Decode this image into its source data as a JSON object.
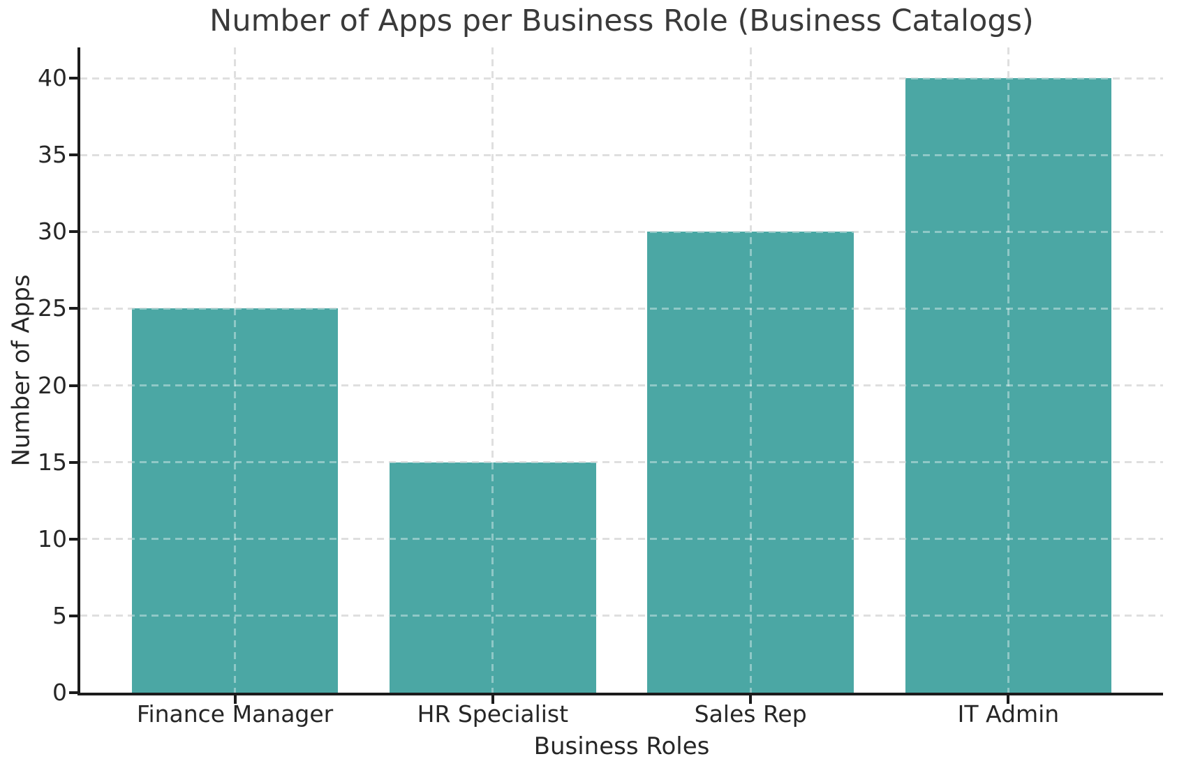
{
  "chart_data": {
    "type": "bar",
    "title": "Number of Apps per Business Role (Business Catalogs)",
    "xlabel": "Business Roles",
    "ylabel": "Number of Apps",
    "categories": [
      "Finance Manager",
      "HR Specialist",
      "Sales Rep",
      "IT Admin"
    ],
    "values": [
      25,
      15,
      30,
      40
    ],
    "yticks": [
      0,
      5,
      10,
      15,
      20,
      25,
      30,
      35,
      40
    ],
    "ylim": [
      0,
      42
    ],
    "xlim": [
      -0.6,
      3.6
    ],
    "bar_width": 0.8,
    "grid": "on",
    "grid_style": "dashed",
    "legend": "none",
    "colors": {
      "bar": "#4BA7A4",
      "grid": "#CCCCCC",
      "spine": "#1C1C1C",
      "title_text": "#3A3A3A",
      "tick_text": "#262626",
      "background": "#FFFFFF"
    }
  }
}
